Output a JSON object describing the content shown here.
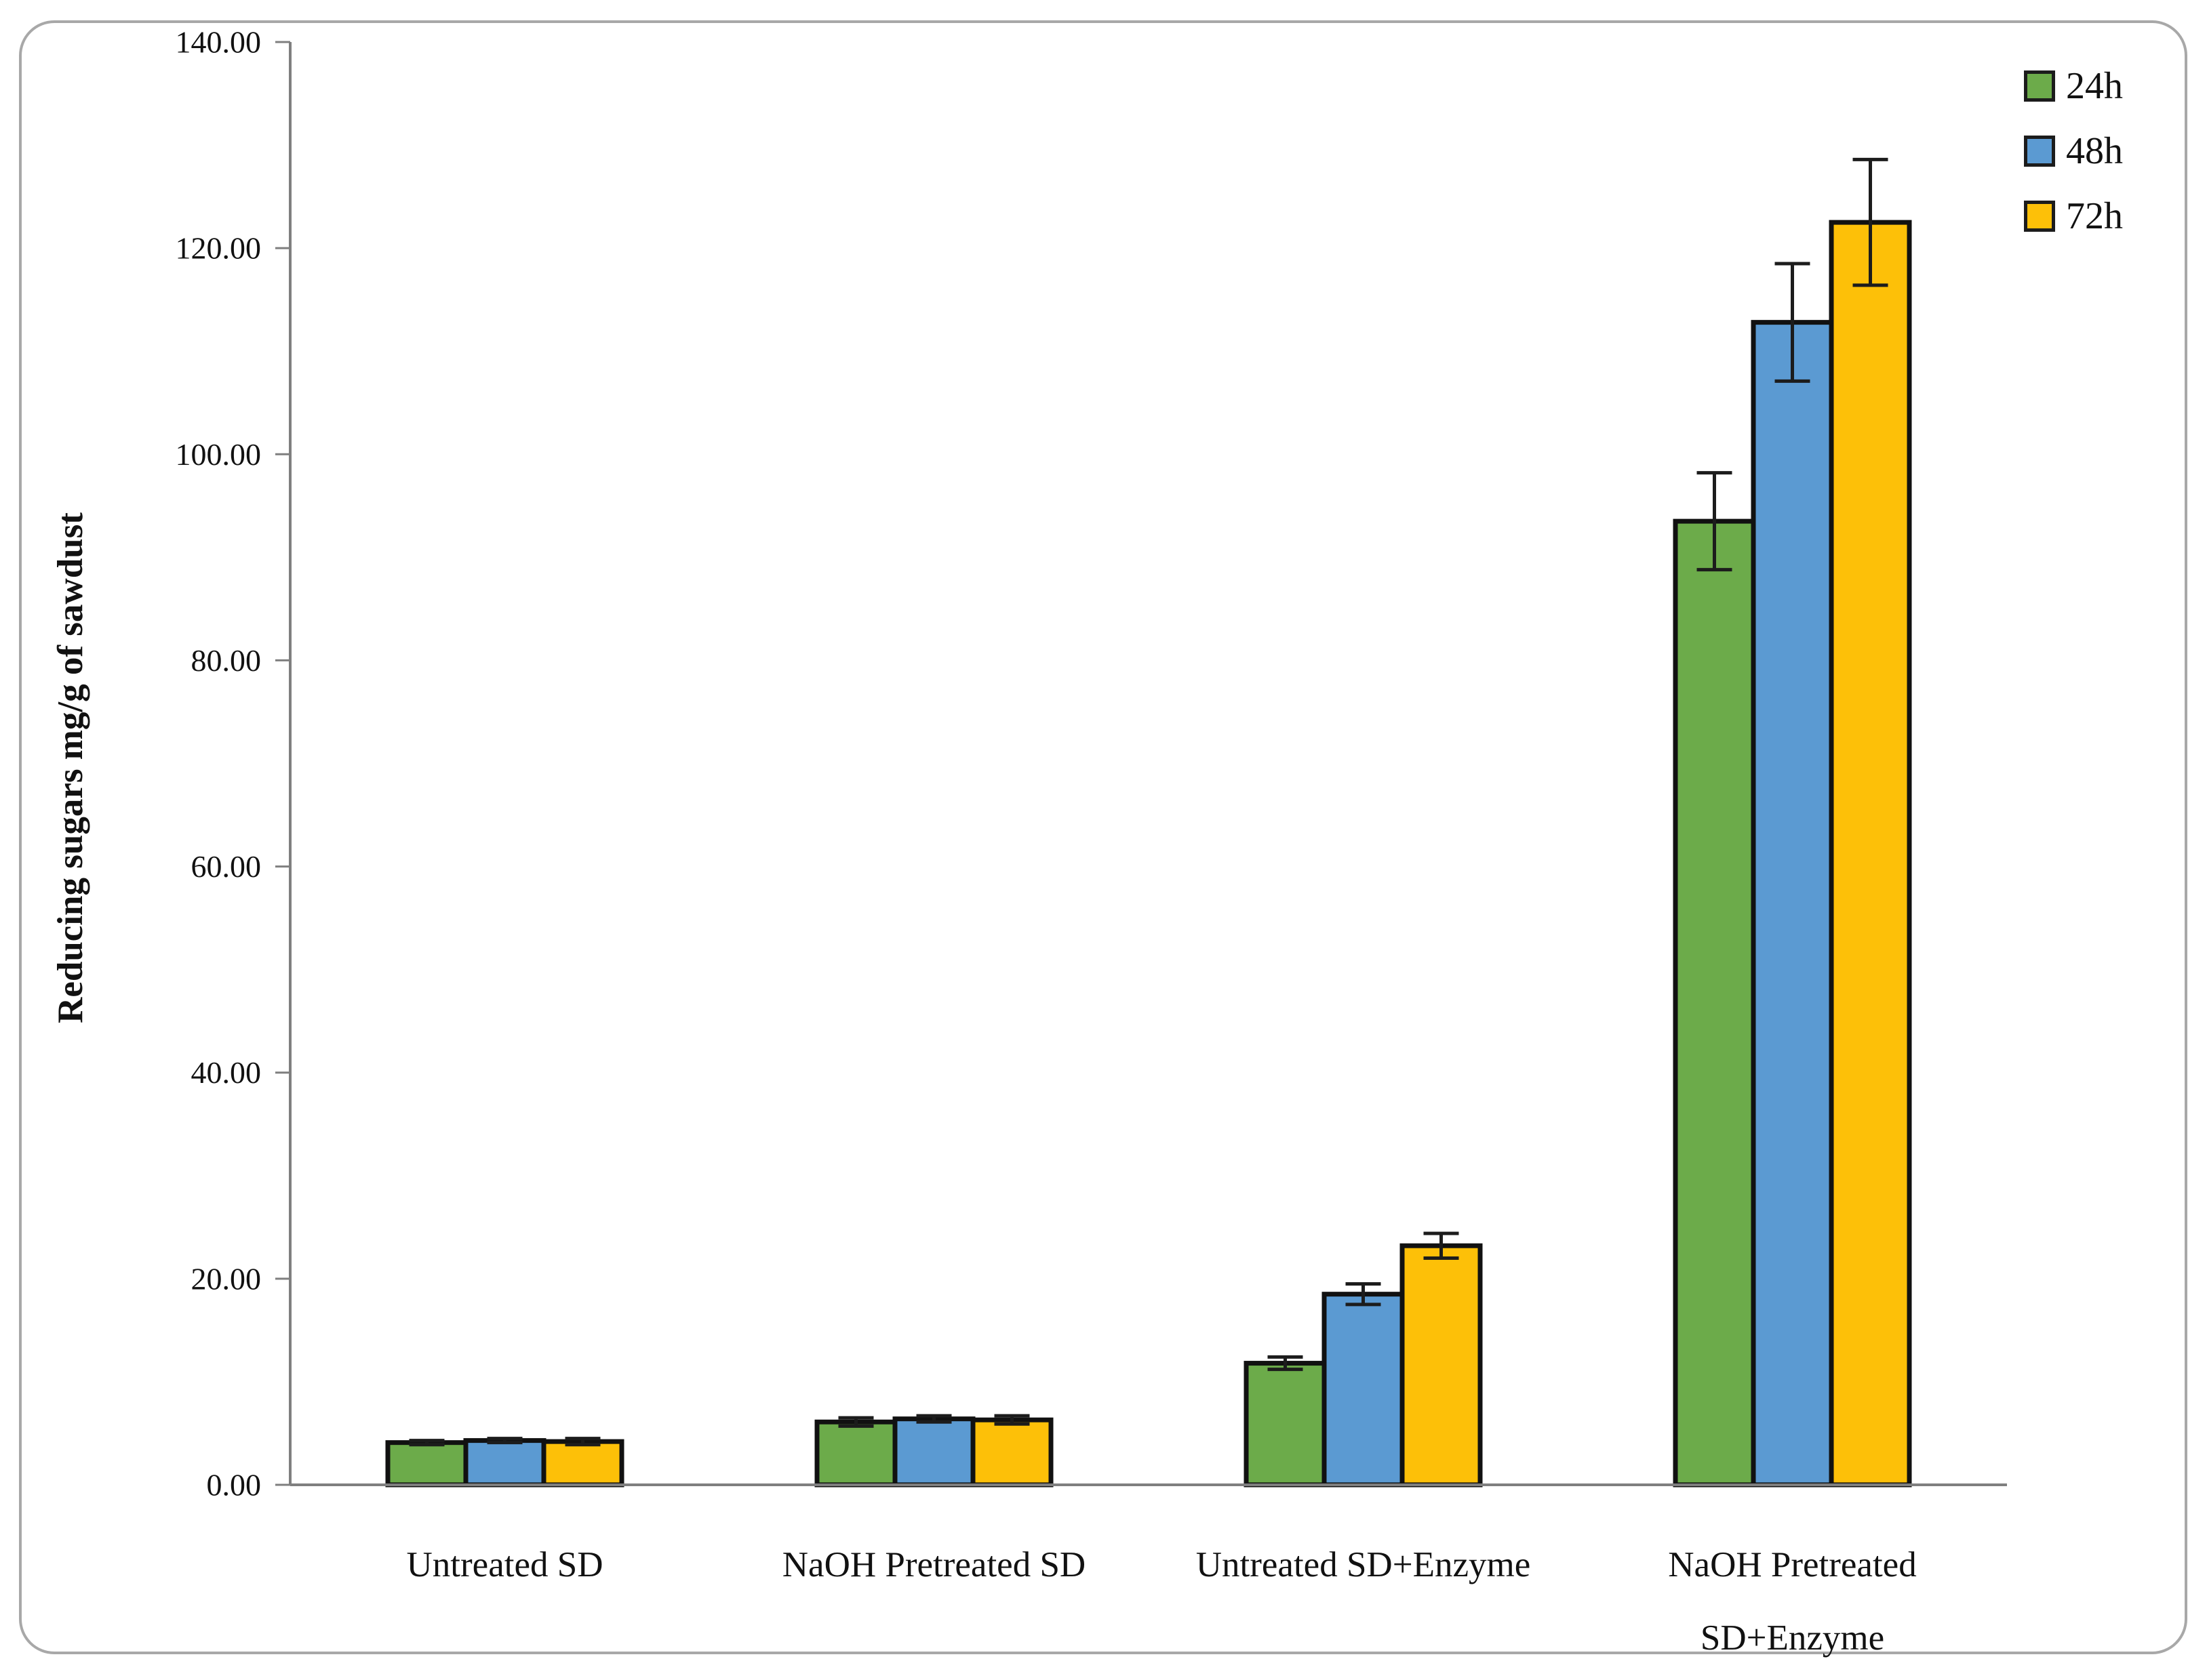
{
  "figure": {
    "background": "#ffffff",
    "frame_border_color": "#a8a8a8"
  },
  "chart_data": {
    "type": "bar",
    "title": "",
    "xlabel": "",
    "ylabel": "Reducing sugars mg/g of sawdust",
    "ylim": [
      0,
      140
    ],
    "ytick_labels": [
      "0.00",
      "20.00",
      "40.00",
      "60.00",
      "80.00",
      "100.00",
      "120.00",
      "140.00"
    ],
    "grid": false,
    "legend_position": "top-right",
    "error_bars": true,
    "axis_color": "#7f7f7f",
    "error_bar_color": "#1c1c1c",
    "categories": [
      "Untreated SD",
      "NaOH Pretreated SD",
      "Untreated SD+Enzyme",
      "NaOH Pretreated SD+Enzyme"
    ],
    "series": [
      {
        "name": "24h",
        "color": "#6CAB4A",
        "border_color": "#111111",
        "values": [
          4.1,
          6.1,
          11.8,
          93.5
        ],
        "errors": [
          0.2,
          0.4,
          0.6,
          4.7
        ]
      },
      {
        "name": "48h",
        "color": "#5B9AD2",
        "border_color": "#111111",
        "values": [
          4.3,
          6.4,
          18.5,
          112.8
        ],
        "errors": [
          0.2,
          0.3,
          1.0,
          5.7
        ]
      },
      {
        "name": "72h",
        "color": "#FDC008",
        "border_color": "#111111",
        "values": [
          4.2,
          6.3,
          23.2,
          122.5
        ],
        "errors": [
          0.3,
          0.4,
          1.2,
          6.1
        ]
      }
    ]
  }
}
